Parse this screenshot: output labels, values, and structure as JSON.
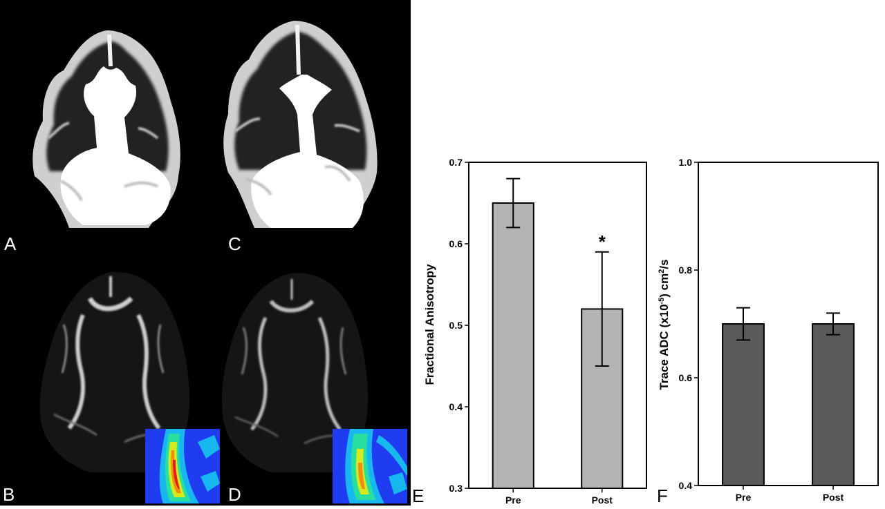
{
  "figure": {
    "panel_letters": [
      "A",
      "C",
      "B",
      "D",
      "E",
      "F"
    ],
    "heatmap_colors": [
      "#1f3cf0",
      "#19b7f0",
      "#27e0a0",
      "#d6e81e",
      "#f08a10",
      "#e02020"
    ]
  },
  "chart_data": [
    {
      "type": "bar",
      "panel": "E",
      "ylabel": "Fractional Anisotropy",
      "xlabel": "",
      "categories": [
        "Pre",
        "Post"
      ],
      "values": [
        0.65,
        0.52
      ],
      "error": [
        0.03,
        0.07
      ],
      "significance": [
        "",
        "*"
      ],
      "ylim": [
        0.3,
        0.7
      ],
      "yticks": [
        "0.3",
        "0.4",
        "0.5",
        "0.6",
        "0.7"
      ],
      "bar_color": "#b4b4b4",
      "grid": false
    },
    {
      "type": "bar",
      "panel": "F",
      "ylabel": "Trace ADC (x10-5) cm2/s",
      "xlabel": "",
      "categories": [
        "Pre",
        "Post"
      ],
      "values": [
        0.7,
        0.7
      ],
      "error": [
        0.03,
        0.02
      ],
      "significance": [
        "",
        ""
      ],
      "ylim": [
        0.4,
        1.0
      ],
      "yticks": [
        "0.4",
        "0.6",
        "0.8",
        "1.0"
      ],
      "bar_color": "#5a5a5a",
      "grid": false
    }
  ]
}
